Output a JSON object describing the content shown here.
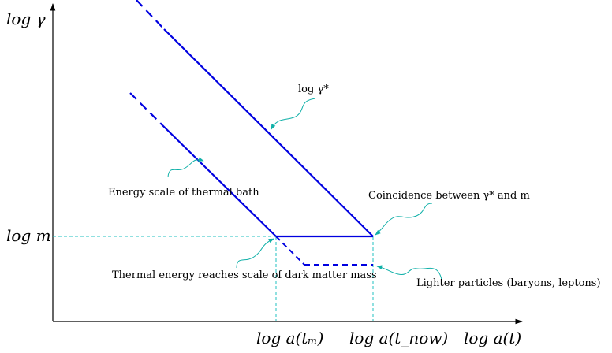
{
  "axes": {
    "y_label": "log γ",
    "x_label": "log a(t)",
    "y_tick_m": "log m",
    "x_tick_tm": "log a(tₘ)",
    "x_tick_tnow": "log a(t_now)"
  },
  "annotations": {
    "gamma_star": "log γ*",
    "thermal_bath": "Energy scale of thermal bath",
    "coincidence": "Coincidence between γ* and m",
    "thermal_reaches": "Thermal energy reaches scale of dark matter mass",
    "lighter": "Lighter particles (baryons, leptons)"
  },
  "colors": {
    "curve": "#0000e0",
    "guide": "#20c0c0",
    "arrow": "#10b0a8",
    "axis": "#000000"
  }
}
